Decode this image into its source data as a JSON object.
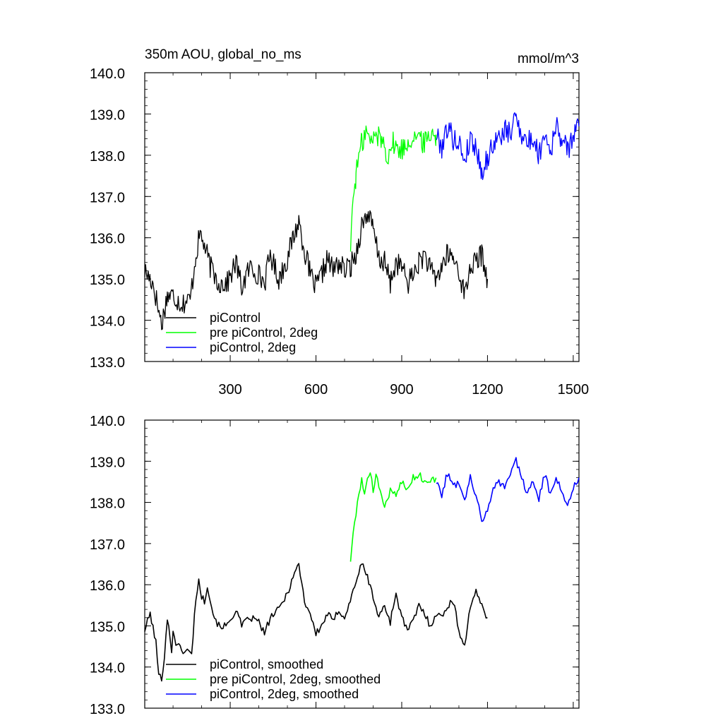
{
  "chart_data": [
    {
      "type": "line",
      "title": "350m AOU, global_no_ms",
      "units": "mmol/m^3",
      "xlim": [
        1,
        1520
      ],
      "ylim": [
        133.0,
        140.0
      ],
      "x_ticks": [
        300,
        600,
        900,
        1200,
        1500
      ],
      "x_tick_labels": [
        "300",
        "600",
        "900",
        "1200",
        "1500"
      ],
      "y_ticks": [
        133.0,
        134.0,
        135.0,
        136.0,
        137.0,
        138.0,
        139.0,
        140.0
      ],
      "y_tick_labels": [
        "133.0",
        "134.0",
        "135.0",
        "136.0",
        "137.0",
        "138.0",
        "139.0",
        "140.0"
      ],
      "legend_position": "bottom-left",
      "series": [
        {
          "name": "piControl",
          "color": "#000000",
          "x": [
            1,
            30,
            60,
            80,
            100,
            130,
            160,
            180,
            195,
            210,
            230,
            260,
            290,
            320,
            340,
            370,
            400,
            420,
            440,
            470,
            500,
            520,
            540,
            560,
            580,
            600,
            620,
            640,
            660,
            680,
            700,
            720,
            740,
            760,
            780,
            800,
            820,
            840,
            860,
            880,
            900,
            920,
            940,
            960,
            980,
            1000,
            1020,
            1040,
            1060,
            1080,
            1100,
            1120,
            1140,
            1160,
            1180,
            1200
          ],
          "values": [
            135.2,
            134.9,
            133.9,
            134.6,
            134.6,
            134.4,
            134.5,
            135.6,
            136.1,
            135.8,
            135.3,
            134.9,
            134.9,
            135.4,
            134.8,
            135.3,
            135.1,
            134.9,
            135.6,
            135.0,
            135.5,
            136.0,
            136.4,
            135.7,
            135.1,
            134.8,
            135.1,
            135.5,
            135.2,
            135.4,
            135.2,
            135.3,
            135.6,
            136.3,
            136.6,
            136.2,
            135.5,
            135.4,
            134.9,
            135.4,
            135.3,
            134.9,
            135.1,
            135.4,
            135.6,
            135.2,
            135.0,
            135.3,
            135.6,
            135.5,
            135.2,
            134.6,
            135.3,
            135.4,
            135.6,
            135.0
          ]
        },
        {
          "name": "pre piControl, 2deg",
          "color": "#00ff00",
          "x": [
            721,
            730,
            740,
            750,
            760,
            775,
            790,
            810,
            830,
            850,
            870,
            890,
            910,
            930,
            950,
            970,
            990,
            1010,
            1020
          ],
          "values": [
            135.8,
            137.0,
            137.5,
            138.0,
            138.3,
            138.6,
            138.3,
            138.5,
            138.4,
            138.0,
            138.3,
            138.1,
            138.2,
            138.4,
            138.5,
            138.3,
            138.4,
            138.6,
            138.5
          ],
          "ylim_note": ""
        },
        {
          "name": "piControl, 2deg",
          "color": "#0000ff",
          "x": [
            1021,
            1040,
            1060,
            1080,
            1100,
            1120,
            1140,
            1160,
            1180,
            1200,
            1220,
            1240,
            1260,
            1280,
            1300,
            1320,
            1340,
            1360,
            1380,
            1400,
            1420,
            1440,
            1460,
            1480,
            1500,
            1520
          ],
          "values": [
            138.5,
            138.2,
            138.7,
            138.4,
            138.3,
            137.9,
            138.4,
            138.2,
            137.6,
            137.9,
            138.3,
            138.4,
            138.6,
            138.5,
            139.0,
            138.5,
            138.3,
            138.4,
            138.0,
            138.6,
            138.1,
            138.7,
            138.4,
            138.1,
            138.5,
            138.7
          ]
        }
      ]
    },
    {
      "type": "line",
      "title": "",
      "xlim": [
        1,
        1520
      ],
      "ylim": [
        133.0,
        140.0
      ],
      "x_ticks": [
        300,
        600,
        900,
        1200,
        1500
      ],
      "x_tick_labels": [],
      "y_ticks": [
        133.0,
        134.0,
        135.0,
        136.0,
        137.0,
        138.0,
        139.0,
        140.0
      ],
      "y_tick_labels": [
        "133.0",
        "134.0",
        "135.0",
        "136.0",
        "137.0",
        "138.0",
        "139.0",
        "140.0"
      ],
      "legend_position": "bottom-left",
      "series": [
        {
          "name": "piControl, smoothed",
          "color": "#000000",
          "x": [
            1,
            20,
            40,
            50,
            60,
            70,
            80,
            95,
            100,
            110,
            130,
            150,
            165,
            180,
            190,
            200,
            210,
            220,
            240,
            260,
            290,
            320,
            340,
            370,
            400,
            420,
            440,
            470,
            500,
            520,
            540,
            560,
            580,
            600,
            620,
            640,
            660,
            680,
            700,
            720,
            740,
            760,
            780,
            800,
            820,
            840,
            860,
            880,
            900,
            920,
            940,
            960,
            980,
            1000,
            1020,
            1040,
            1060,
            1080,
            1100,
            1120,
            1140,
            1160,
            1180,
            1200
          ],
          "values": [
            134.9,
            135.3,
            134.6,
            133.8,
            133.7,
            134.3,
            135.2,
            134.4,
            134.9,
            134.6,
            134.4,
            134.4,
            134.3,
            135.7,
            136.1,
            135.7,
            135.6,
            136.0,
            135.3,
            135.0,
            135.0,
            135.4,
            135.0,
            135.2,
            135.1,
            134.8,
            135.2,
            135.4,
            135.8,
            136.2,
            136.5,
            135.6,
            135.3,
            134.8,
            135.0,
            135.3,
            135.1,
            135.4,
            135.2,
            135.6,
            136.1,
            136.5,
            136.2,
            135.7,
            135.2,
            135.5,
            135.1,
            135.8,
            135.2,
            134.9,
            135.1,
            135.5,
            135.3,
            135.0,
            135.3,
            135.2,
            135.5,
            135.6,
            134.9,
            134.5,
            135.5,
            135.8,
            135.5,
            135.2
          ]
        },
        {
          "name": "pre piControl, 2deg, smoothed",
          "color": "#00ff00",
          "x": [
            721,
            730,
            740,
            750,
            760,
            770,
            780,
            790,
            800,
            810,
            820,
            830,
            840,
            860,
            880,
            900,
            920,
            940,
            960,
            980,
            1000,
            1020
          ],
          "values": [
            136.6,
            137.2,
            137.7,
            138.2,
            138.6,
            138.2,
            138.5,
            138.8,
            138.3,
            138.7,
            138.4,
            138.1,
            137.9,
            138.3,
            138.2,
            138.5,
            138.3,
            138.6,
            138.7,
            138.5,
            138.5,
            138.6
          ],
          "ylim_note": ""
        },
        {
          "name": "piControl, 2deg, smoothed",
          "color": "#0000ff",
          "x": [
            1021,
            1040,
            1060,
            1080,
            1100,
            1120,
            1140,
            1160,
            1180,
            1200,
            1220,
            1240,
            1260,
            1280,
            1300,
            1320,
            1340,
            1360,
            1380,
            1400,
            1420,
            1440,
            1460,
            1480,
            1500,
            1520
          ],
          "values": [
            138.5,
            138.2,
            138.7,
            138.4,
            138.5,
            138.1,
            138.6,
            138.2,
            137.5,
            137.8,
            138.4,
            138.5,
            138.4,
            138.7,
            139.0,
            138.6,
            138.2,
            138.5,
            138.1,
            138.7,
            138.2,
            138.6,
            138.3,
            137.9,
            138.4,
            138.6
          ]
        }
      ]
    }
  ]
}
